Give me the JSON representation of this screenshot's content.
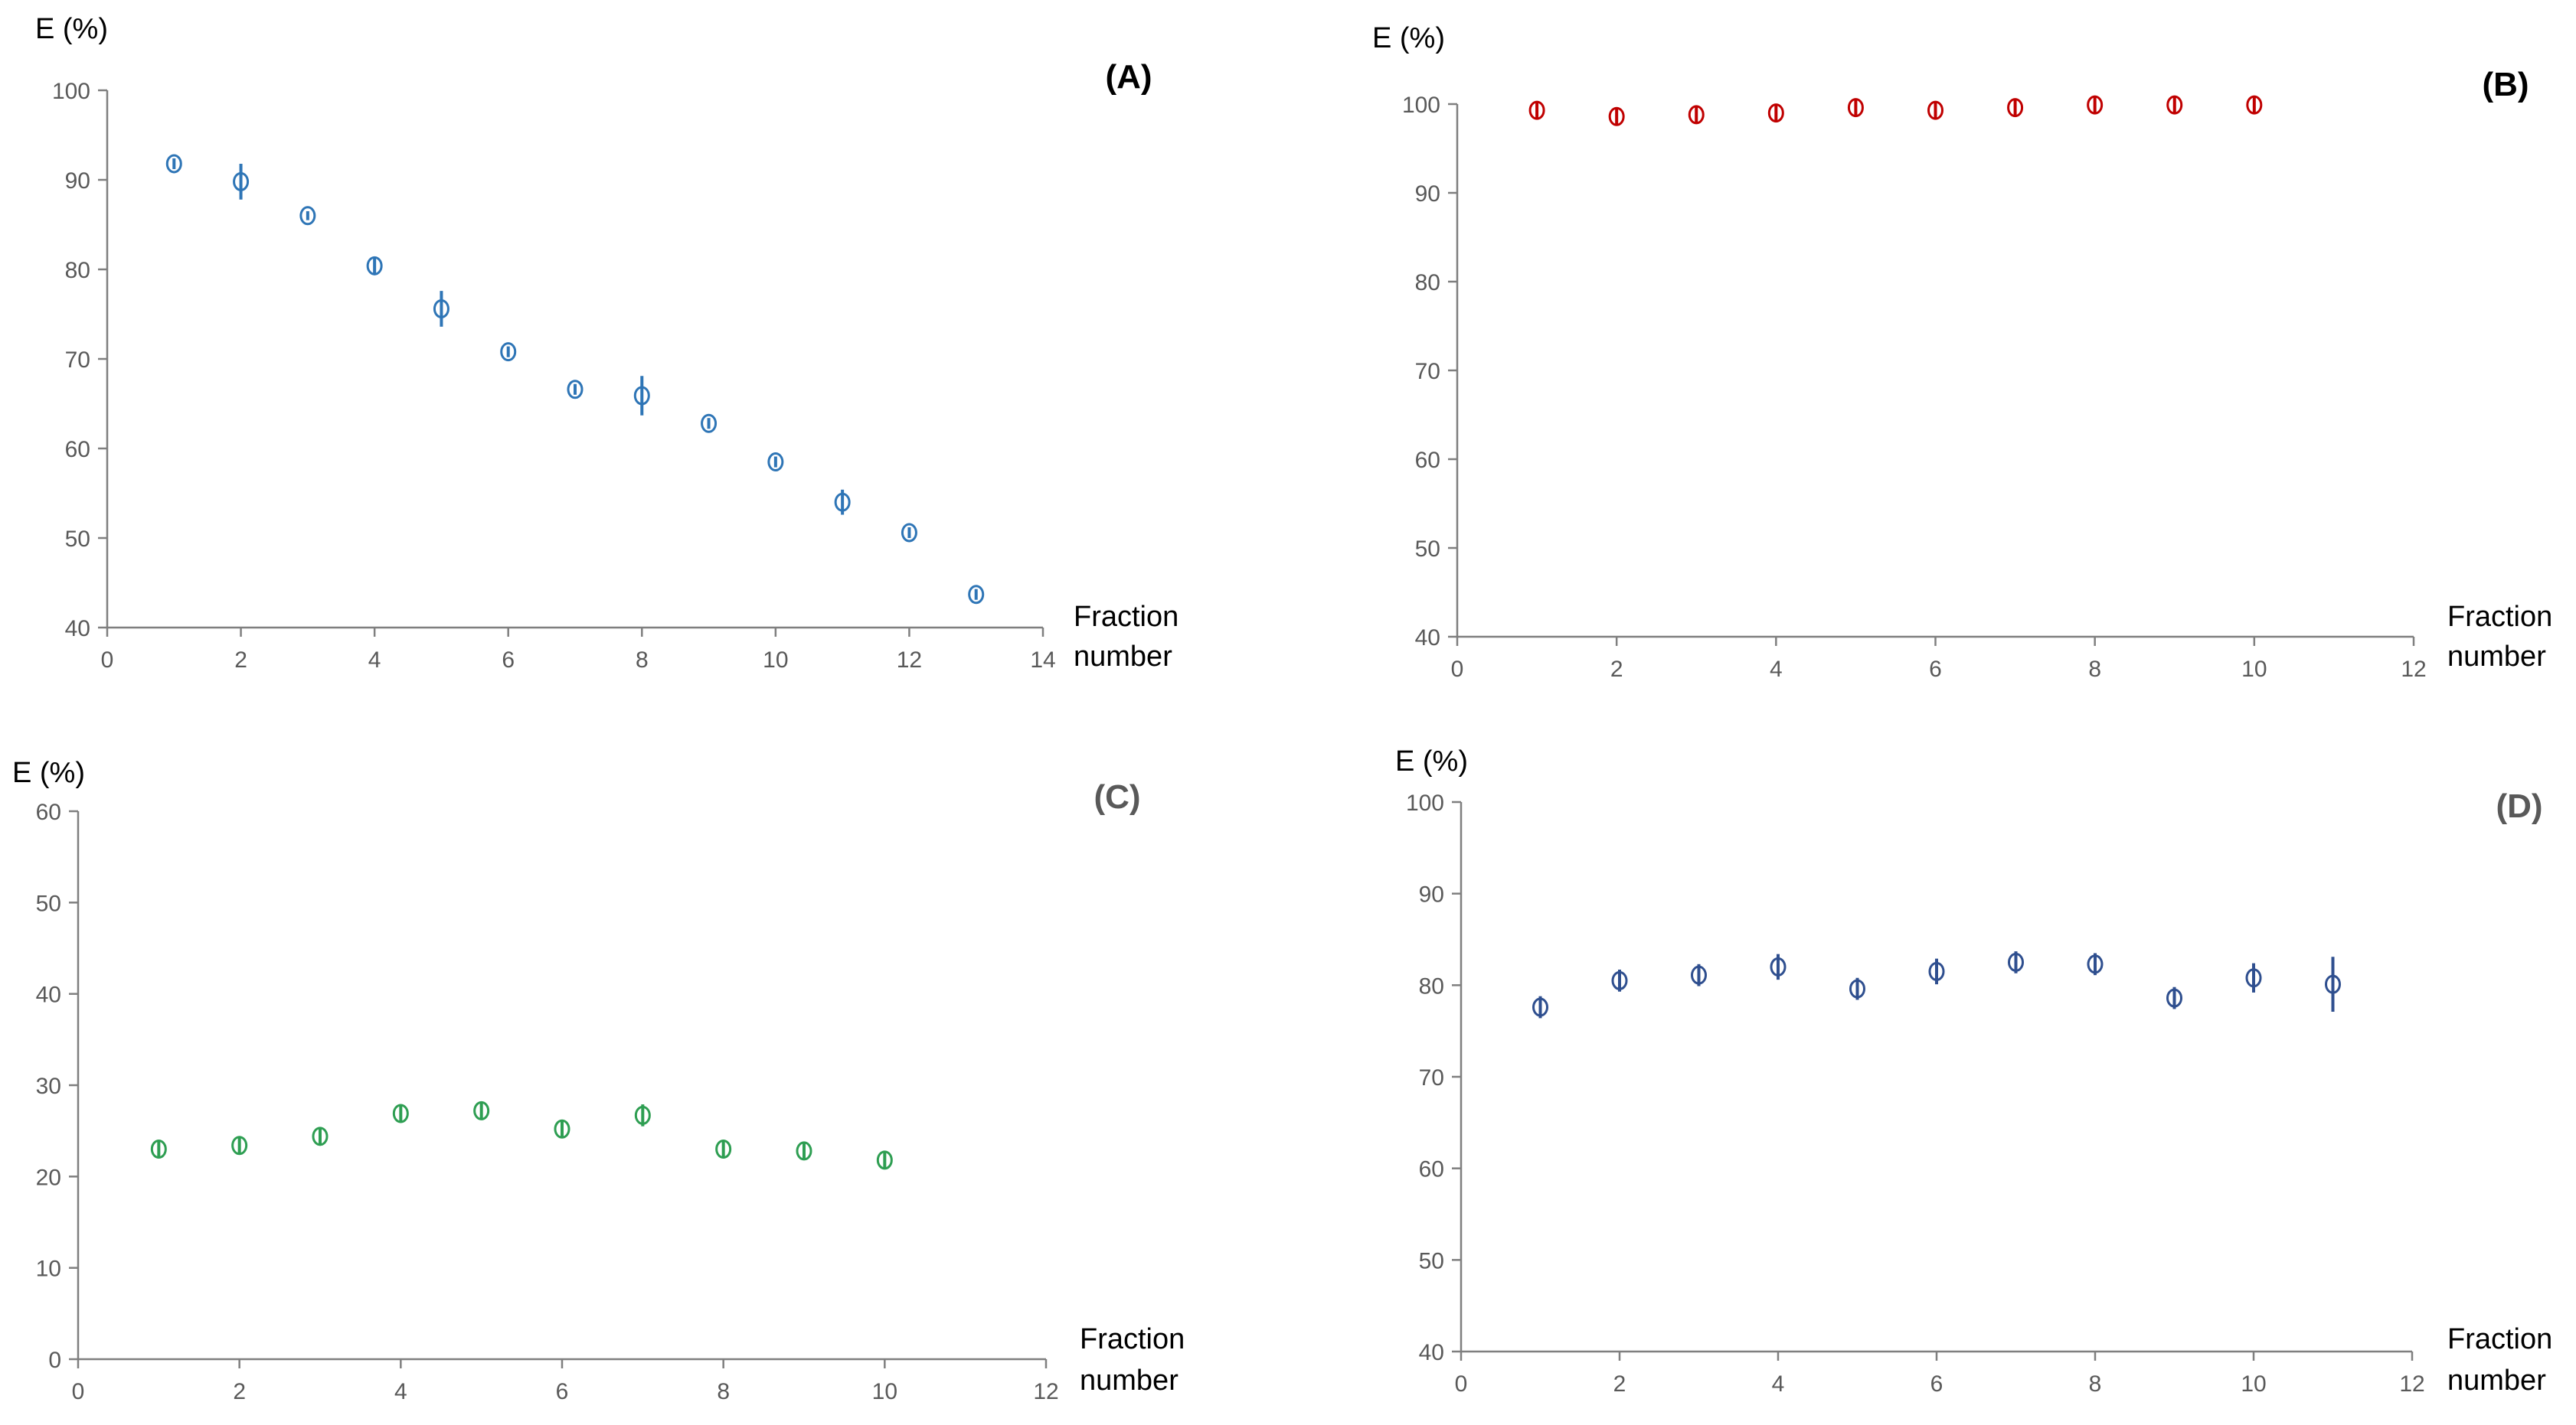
{
  "colors": {
    "A": "#2e75b6",
    "B": "#c00000",
    "C": "#2e9e52",
    "D": "#2f4f8f"
  },
  "chart_data": [
    {
      "id": "A",
      "type": "scatter",
      "title": "(A)",
      "ylabel": "E (%)",
      "xlabel_line1": "Fraction",
      "xlabel_line2": "number",
      "xlim": [
        0,
        14
      ],
      "ylim": [
        40,
        100
      ],
      "xticks": [
        0,
        2,
        4,
        6,
        8,
        10,
        12,
        14
      ],
      "yticks": [
        40,
        50,
        60,
        70,
        80,
        90,
        100
      ],
      "series": [
        {
          "name": "A",
          "x": [
            1,
            2,
            3,
            4,
            5,
            6,
            7,
            8,
            9,
            10,
            11,
            12,
            13
          ],
          "y": [
            91.8,
            89.8,
            86.0,
            80.4,
            75.6,
            70.8,
            66.6,
            65.9,
            62.8,
            58.5,
            54.0,
            50.6,
            43.7
          ],
          "err": [
            0.6,
            2.0,
            0.5,
            1.0,
            2.0,
            0.6,
            0.6,
            2.2,
            0.6,
            0.6,
            1.4,
            0.6,
            0.6
          ]
        }
      ]
    },
    {
      "id": "B",
      "type": "scatter",
      "title": "(B)",
      "ylabel": "E (%)",
      "xlabel_line1": "Fraction",
      "xlabel_line2": "number",
      "xlim": [
        0,
        12
      ],
      "ylim": [
        40,
        100
      ],
      "xticks": [
        0,
        2,
        4,
        6,
        8,
        10,
        12
      ],
      "yticks": [
        40,
        50,
        60,
        70,
        80,
        90,
        100
      ],
      "series": [
        {
          "name": "B",
          "x": [
            1,
            2,
            3,
            4,
            5,
            6,
            7,
            8,
            9,
            10
          ],
          "y": [
            99.3,
            98.6,
            98.8,
            99.0,
            99.6,
            99.3,
            99.6,
            99.9,
            99.9,
            99.9
          ],
          "err": [
            1.0,
            1.0,
            1.0,
            1.0,
            1.0,
            1.0,
            1.0,
            1.0,
            1.0,
            1.0
          ]
        }
      ]
    },
    {
      "id": "C",
      "type": "scatter",
      "title": "(C)",
      "ylabel": "E (%)",
      "xlabel_line1": "Fraction",
      "xlabel_line2": "number",
      "xlim": [
        0,
        12
      ],
      "ylim": [
        0,
        60
      ],
      "xticks": [
        0,
        2,
        4,
        6,
        8,
        10,
        12
      ],
      "yticks": [
        0,
        10,
        20,
        30,
        40,
        50,
        60
      ],
      "series": [
        {
          "name": "C",
          "x": [
            1,
            2,
            3,
            4,
            5,
            6,
            7,
            8,
            9,
            10
          ],
          "y": [
            23.0,
            23.4,
            24.4,
            26.9,
            27.2,
            25.2,
            26.7,
            23.0,
            22.8,
            21.8
          ],
          "err": [
            1.0,
            1.0,
            1.0,
            1.0,
            1.0,
            1.0,
            1.2,
            1.0,
            1.0,
            1.0
          ]
        }
      ]
    },
    {
      "id": "D",
      "type": "scatter",
      "title": "(D)",
      "ylabel": "E (%)",
      "xlabel_line1": "Fraction",
      "xlabel_line2": "number",
      "xlim": [
        0,
        12
      ],
      "ylim": [
        40,
        100
      ],
      "xticks": [
        0,
        2,
        4,
        6,
        8,
        10,
        12
      ],
      "yticks": [
        40,
        50,
        60,
        70,
        80,
        90,
        100
      ],
      "series": [
        {
          "name": "D",
          "x": [
            1,
            2,
            3,
            4,
            5,
            6,
            7,
            8,
            9,
            10,
            11
          ],
          "y": [
            77.6,
            80.5,
            81.1,
            82.0,
            79.6,
            81.5,
            82.5,
            82.3,
            78.6,
            80.8,
            80.1
          ],
          "err": [
            1.2,
            1.2,
            1.2,
            1.4,
            1.2,
            1.4,
            1.2,
            1.2,
            1.2,
            1.6,
            3.0
          ]
        }
      ]
    }
  ]
}
